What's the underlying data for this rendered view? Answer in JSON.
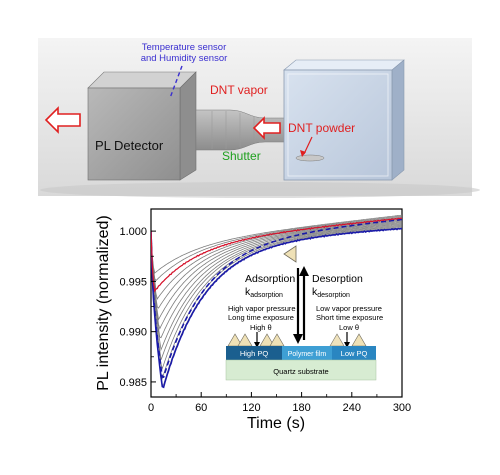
{
  "schematic": {
    "sensor_label_line1": "Temperature sensor",
    "sensor_label_line2": "and Humidity sensor",
    "vapor_label": "DNT vapor",
    "detector_label": "PL Detector",
    "powder_label": "DNT powder",
    "shutter_label": "Shutter",
    "colors": {
      "sensor": "#3a2fd0",
      "vapor": "#e01f1f",
      "shutter": "#1fa01f"
    }
  },
  "inset": {
    "adsorption_label": "Adsorption",
    "k_symbol": "k",
    "k_ads_sub": "adsorption",
    "desorption_label": "Desorption",
    "k_des_sub": "desorption",
    "high_text1": "High vapor pressure",
    "high_text2": "Long time exposure",
    "high_theta": "High θ",
    "low_text1": "Low vapor pressure",
    "low_text2": "Short time exposure",
    "low_theta": "Low θ",
    "high_pq": "High PQ",
    "polymer_film": "Polymer film",
    "low_pq": "Low PQ",
    "substrate": "Quartz substrate"
  },
  "chart_data": {
    "type": "line",
    "xlabel": "Time (s)",
    "ylabel": "PL intensity (normalized)",
    "xlim": [
      0,
      300
    ],
    "ylim": [
      0.9835,
      1.0022
    ],
    "xticks": [
      "0",
      "60",
      "120",
      "180",
      "240",
      "300"
    ],
    "yticks": [
      "0.985",
      "0.990",
      "0.995",
      "1.000"
    ],
    "ytick_values": [
      0.985,
      0.99,
      0.995,
      1.0
    ],
    "xtick_values": [
      0,
      60,
      120,
      180,
      240,
      300
    ],
    "family_curves": {
      "count": 13,
      "min_values": [
        0.9844,
        0.9852,
        0.9862,
        0.9872,
        0.9882,
        0.9892,
        0.9902,
        0.9912,
        0.9922,
        0.9932,
        0.9942,
        0.995,
        0.9958
      ],
      "min_times": [
        14,
        13,
        13,
        12,
        12,
        11,
        10,
        9,
        8,
        7,
        6,
        5,
        4
      ],
      "end_values": [
        1.0004,
        1.0005,
        1.0006,
        1.0007,
        1.0008,
        1.0009,
        1.001,
        1.0011,
        1.0012,
        1.0013,
        1.0014,
        1.0015,
        1.0016
      ]
    },
    "series": [
      {
        "min": 0.9842,
        "tmin": 14,
        "end": 1.0003,
        "noisy": true
      },
      {
        "min": 0.9852,
        "tmin": 14,
        "end": 1.0012,
        "dashed": true
      },
      {
        "min": 0.994,
        "tmin": 4,
        "end": 1.0013,
        "noisy": true
      }
    ],
    "colors": {
      "blue": "#1a1aa8",
      "red": "#d8102a",
      "gray": "#7d7d7d"
    }
  }
}
